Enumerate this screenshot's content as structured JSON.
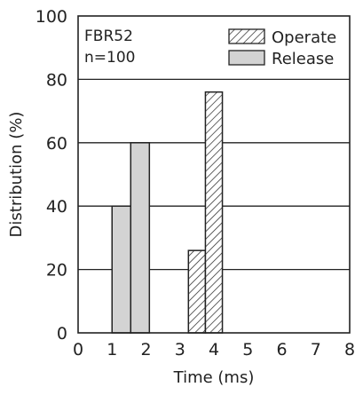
{
  "chart_data": {
    "type": "bar",
    "title": "",
    "annotation": {
      "line1": "FBR52",
      "line2": "n=100"
    },
    "xlabel": "Time (ms)",
    "ylabel": "Distribution (%)",
    "xlim": [
      0,
      8
    ],
    "ylim": [
      0,
      100
    ],
    "xticks": [
      "0",
      "1",
      "2",
      "3",
      "4",
      "5",
      "6",
      "7",
      "8"
    ],
    "yticks": [
      "0",
      "20",
      "40",
      "60",
      "80",
      "100"
    ],
    "grid": "horizontal",
    "legend_position": "top-right",
    "series": [
      {
        "name": "Operate",
        "style": "hatched",
        "color": "#222222",
        "bars": [
          {
            "x_start": 3.25,
            "x_end": 3.75,
            "value": 26
          },
          {
            "x_start": 3.75,
            "x_end": 4.25,
            "value": 76
          }
        ]
      },
      {
        "name": "Release",
        "style": "solid",
        "color": "#d3d3d3",
        "bars": [
          {
            "x_start": 1.0,
            "x_end": 1.55,
            "value": 40
          },
          {
            "x_start": 1.55,
            "x_end": 2.1,
            "value": 60
          }
        ]
      }
    ]
  }
}
